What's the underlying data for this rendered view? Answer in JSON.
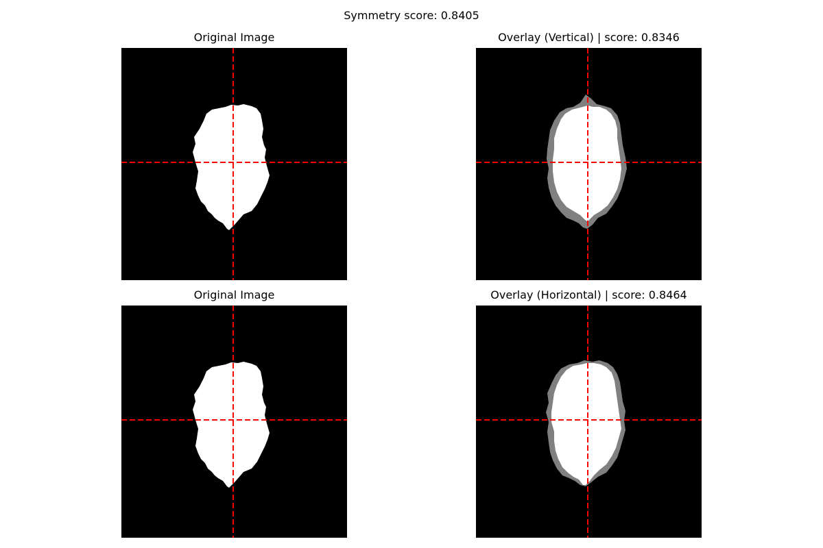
{
  "figure": {
    "suptitle": "Symmetry score: 0.8405"
  },
  "panels": [
    {
      "title": "Original Image",
      "kind": "original"
    },
    {
      "title": "Overlay (Vertical) | score: 0.8346",
      "kind": "overlay-vertical"
    },
    {
      "title": "Original Image",
      "kind": "original"
    },
    {
      "title": "Overlay (Horizontal) | score: 0.8464",
      "kind": "overlay-horizontal"
    }
  ],
  "colors": {
    "background": "#000000",
    "mask": "#ffffff",
    "mismatch": "#808080",
    "axis_line": "#ff0000"
  }
}
